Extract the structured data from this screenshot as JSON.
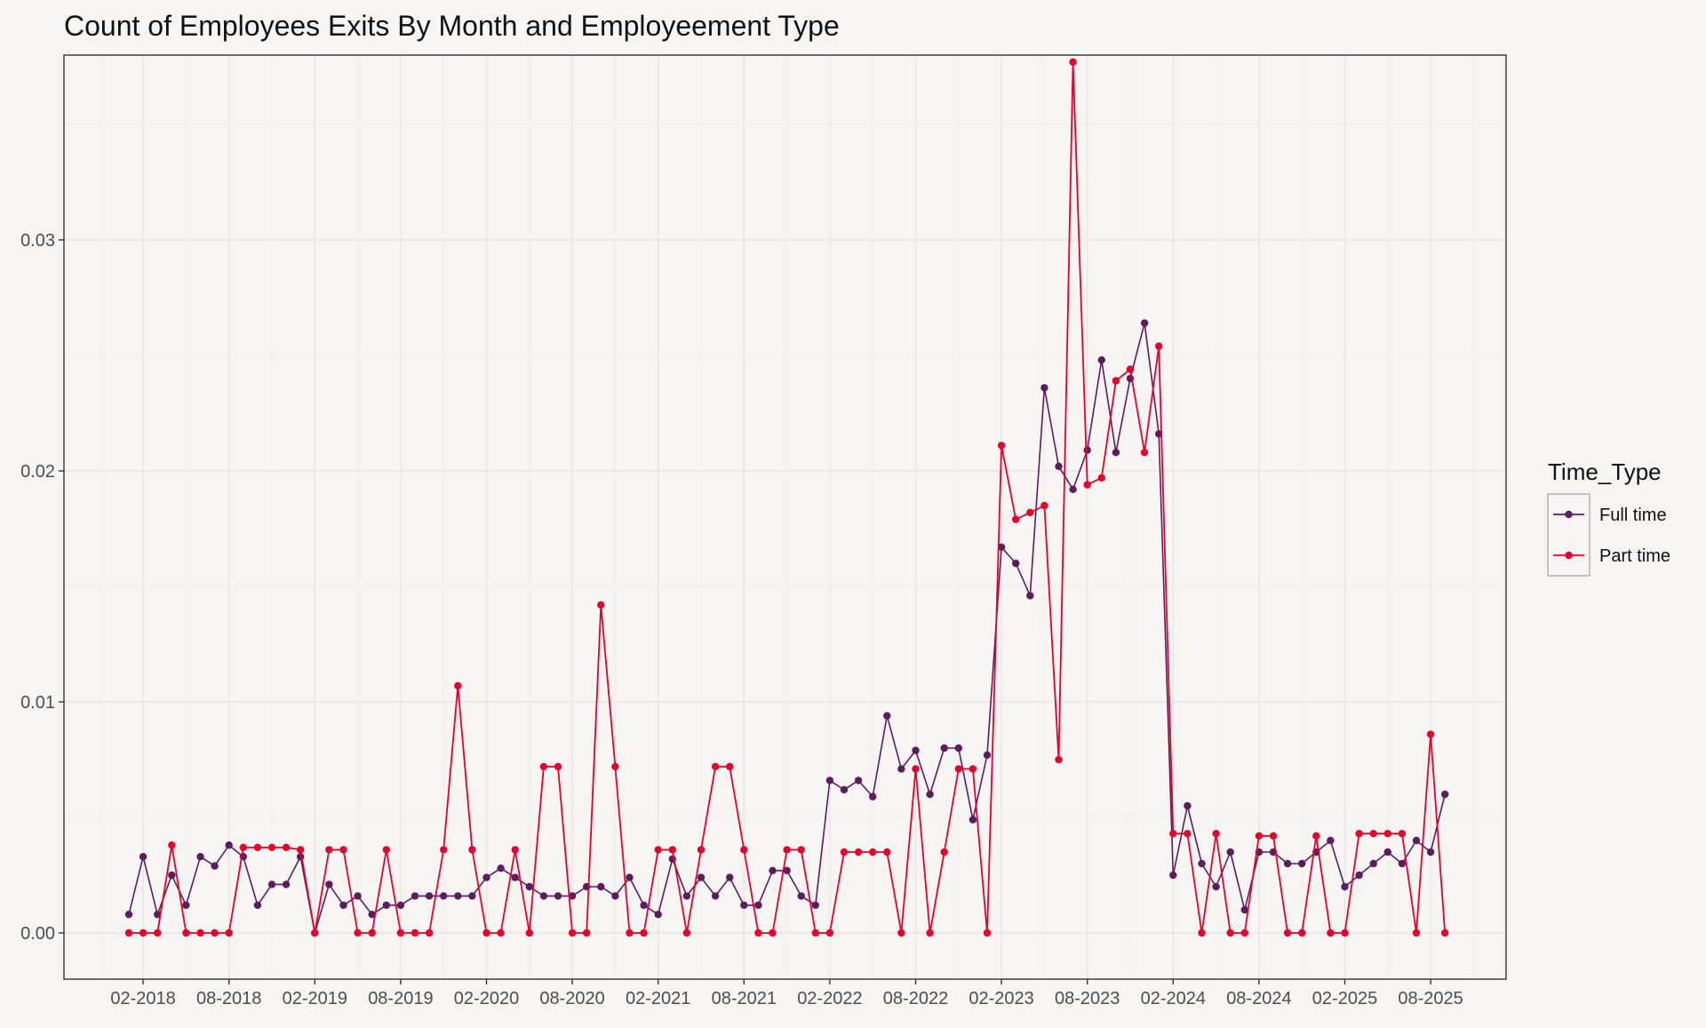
{
  "chart_data": {
    "type": "line",
    "title": "Count of Employees Exits By Month and Employeement Type",
    "xlabel": "",
    "ylabel": "",
    "ylim": [
      -0.002,
      0.038
    ],
    "yticks": [
      0.0,
      0.01,
      0.02,
      0.03
    ],
    "ytick_labels": [
      "0.00",
      "0.01",
      "0.02",
      "0.03"
    ],
    "x": [
      "01-2018",
      "02-2018",
      "03-2018",
      "04-2018",
      "05-2018",
      "06-2018",
      "07-2018",
      "08-2018",
      "09-2018",
      "10-2018",
      "11-2018",
      "12-2018",
      "01-2019",
      "02-2019",
      "03-2019",
      "04-2019",
      "05-2019",
      "06-2019",
      "07-2019",
      "08-2019",
      "09-2019",
      "10-2019",
      "11-2019",
      "12-2019",
      "01-2020",
      "02-2020",
      "03-2020",
      "04-2020",
      "05-2020",
      "06-2020",
      "07-2020",
      "08-2020",
      "09-2020",
      "10-2020",
      "11-2020",
      "12-2020",
      "01-2021",
      "02-2021",
      "03-2021",
      "04-2021",
      "05-2021",
      "06-2021",
      "07-2021",
      "08-2021",
      "09-2021",
      "10-2021",
      "11-2021",
      "12-2021",
      "01-2022",
      "02-2022",
      "03-2022",
      "04-2022",
      "05-2022",
      "06-2022",
      "07-2022",
      "08-2022",
      "09-2022",
      "10-2022",
      "11-2022",
      "12-2022",
      "01-2023",
      "02-2023",
      "03-2023",
      "04-2023",
      "05-2023",
      "06-2023",
      "07-2023",
      "08-2023",
      "09-2023",
      "10-2023",
      "11-2023",
      "12-2023",
      "01-2024",
      "02-2024",
      "03-2024",
      "04-2024",
      "05-2024",
      "06-2024",
      "07-2024",
      "08-2024",
      "09-2024",
      "10-2024",
      "11-2024",
      "12-2024",
      "01-2025",
      "02-2025",
      "03-2025",
      "04-2025",
      "05-2025",
      "06-2025",
      "07-2025",
      "08-2025",
      "09-2025"
    ],
    "x_tick_labels": [
      "02-2018",
      "08-2018",
      "02-2019",
      "08-2019",
      "02-2020",
      "08-2020",
      "02-2021",
      "08-2021",
      "02-2022",
      "08-2022",
      "02-2023",
      "08-2023",
      "02-2024",
      "08-2024",
      "02-2025",
      "08-2025"
    ],
    "grid": true,
    "legend": {
      "title": "Time_Type",
      "position": "right"
    },
    "series": [
      {
        "name": "Full time",
        "color": "#5b1d5c",
        "values": [
          0.0008,
          0.0033,
          0.0008,
          0.0025,
          0.0012,
          0.0033,
          0.0029,
          0.0038,
          0.0033,
          0.0012,
          0.0021,
          0.0021,
          0.0033,
          0.0,
          0.0021,
          0.0012,
          0.0016,
          0.0008,
          0.0012,
          0.0012,
          0.0016,
          0.0016,
          0.0016,
          0.0016,
          0.0016,
          0.0024,
          0.0028,
          0.0024,
          0.002,
          0.0016,
          0.0016,
          0.0016,
          0.002,
          0.002,
          0.0016,
          0.0024,
          0.0012,
          0.0008,
          0.0032,
          0.0016,
          0.0024,
          0.0016,
          0.0024,
          0.0012,
          0.0012,
          0.0027,
          0.0027,
          0.0016,
          0.0012,
          0.0066,
          0.0062,
          0.0066,
          0.0059,
          0.0094,
          0.0071,
          0.0079,
          0.006,
          0.008,
          0.008,
          0.0049,
          0.0077,
          0.0167,
          0.016,
          0.0146,
          0.0236,
          0.0202,
          0.0192,
          0.0209,
          0.0248,
          0.0208,
          0.024,
          0.0264,
          0.0216,
          0.0025,
          0.0055,
          0.003,
          0.002,
          0.0035,
          0.001,
          0.0035,
          0.0035,
          0.003,
          0.003,
          0.0035,
          0.004,
          0.002,
          0.0025,
          0.003,
          0.0035,
          0.003,
          0.004,
          0.0035,
          0.006
        ]
      },
      {
        "name": "Part time",
        "color": "#e8002c",
        "values": [
          0.0,
          0.0,
          0.0,
          0.0038,
          0.0,
          0.0,
          0.0,
          0.0,
          0.0037,
          0.0037,
          0.0037,
          0.0037,
          0.0036,
          0.0,
          0.0036,
          0.0036,
          0.0,
          0.0,
          0.0036,
          0.0,
          0.0,
          0.0,
          0.0036,
          0.0107,
          0.0036,
          0.0,
          0.0,
          0.0036,
          0.0,
          0.0072,
          0.0072,
          0.0,
          0.0,
          0.0142,
          0.0072,
          0.0,
          0.0,
          0.0036,
          0.0036,
          0.0,
          0.0036,
          0.0072,
          0.0072,
          0.0036,
          0.0,
          0.0,
          0.0036,
          0.0036,
          0.0,
          0.0,
          0.0035,
          0.0035,
          0.0035,
          0.0035,
          0.0,
          0.0071,
          0.0,
          0.0035,
          0.0071,
          0.0071,
          0.0,
          0.0211,
          0.0179,
          0.0182,
          0.0185,
          0.0075,
          0.0377,
          0.0194,
          0.0197,
          0.0239,
          0.0244,
          0.0208,
          0.0254,
          0.0043,
          0.0043,
          0.0,
          0.0043,
          0.0,
          0.0,
          0.0042,
          0.0042,
          0.0,
          0.0,
          0.0042,
          0.0,
          0.0,
          0.0043,
          0.0043,
          0.0043,
          0.0043,
          0.0,
          0.0086,
          0.0
        ]
      }
    ]
  }
}
